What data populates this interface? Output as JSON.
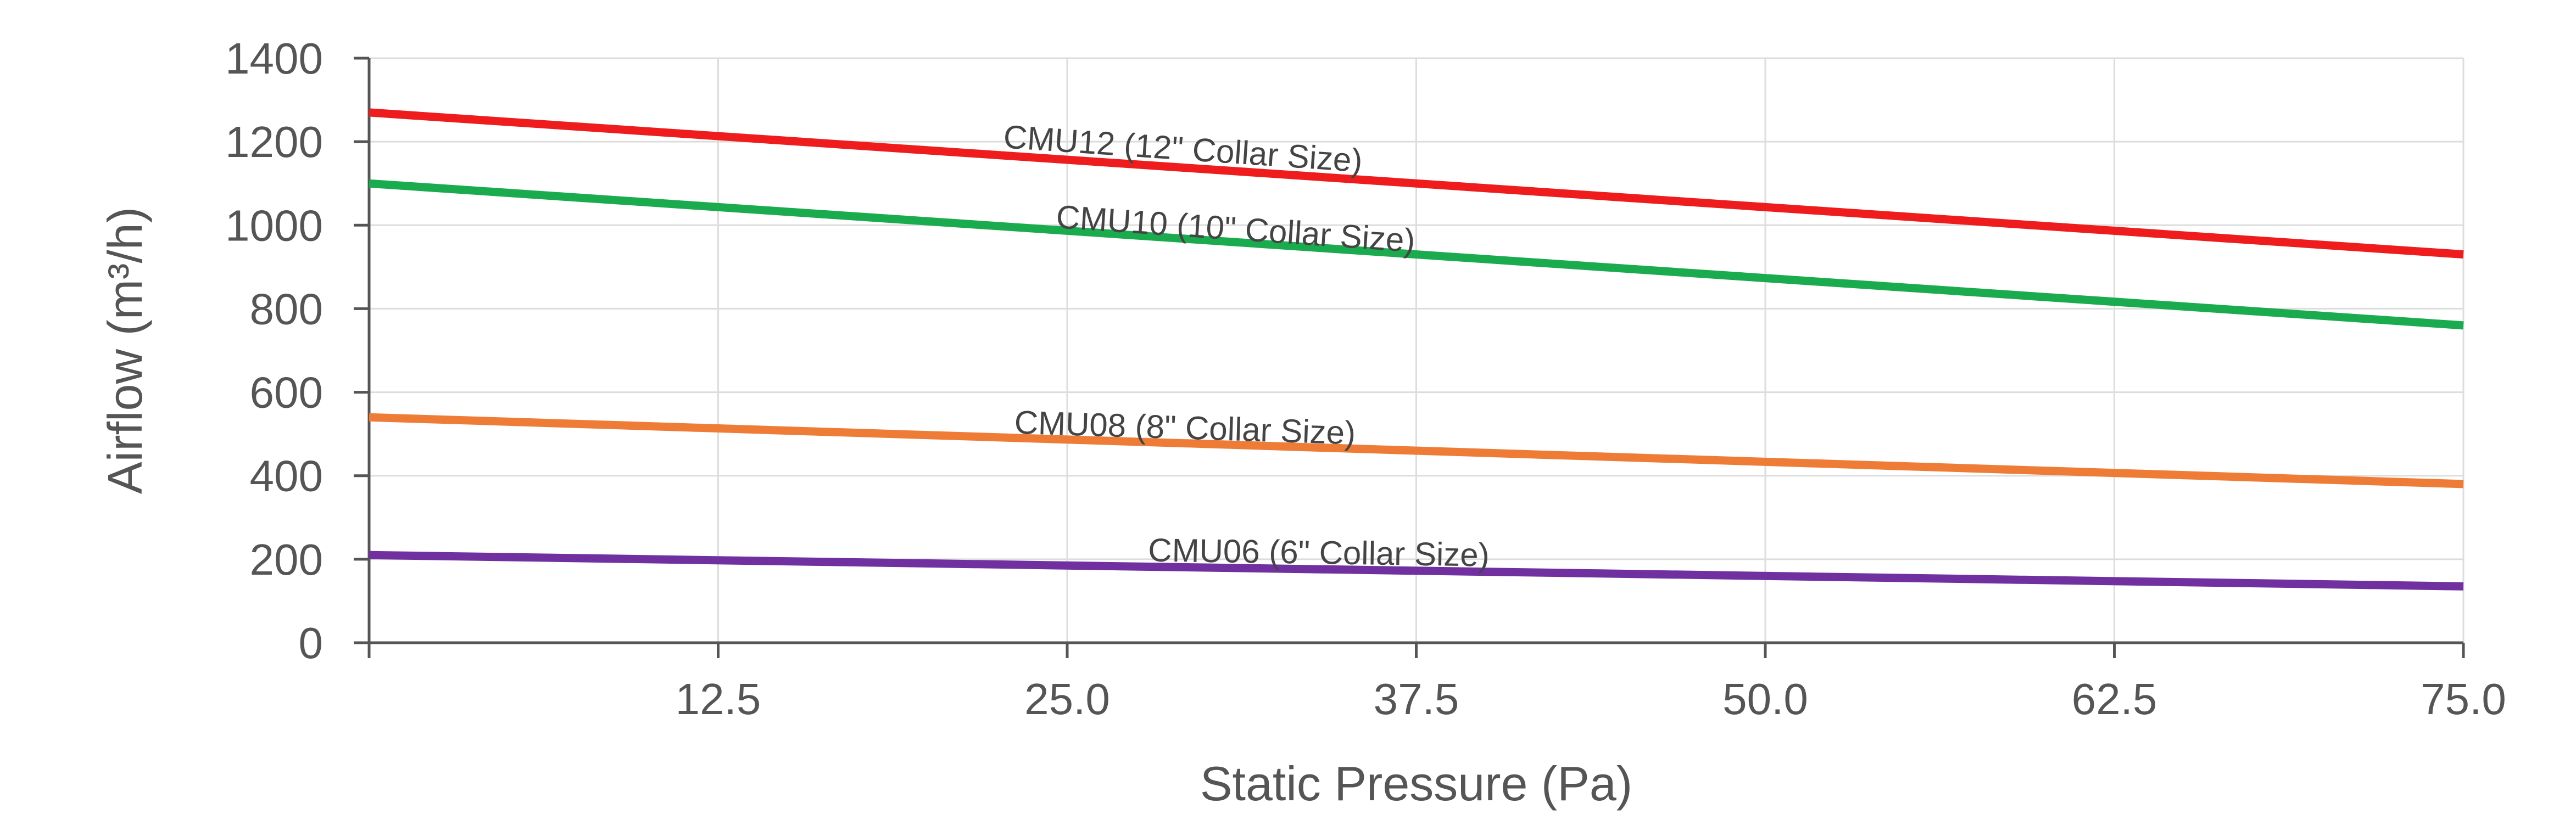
{
  "chart_data": {
    "type": "line",
    "title": "",
    "xlabel": "Static Pressure (Pa)",
    "ylabel": "Airflow (m³/h)",
    "xlim": [
      0,
      75
    ],
    "ylim": [
      0,
      1400
    ],
    "x_ticks": [
      12.5,
      25.0,
      37.5,
      50.0,
      62.5,
      75.0
    ],
    "x_tick_labels": [
      "12.5",
      "25.0",
      "37.5",
      "50.0",
      "62.5",
      "75.0"
    ],
    "y_ticks": [
      0,
      200,
      400,
      600,
      800,
      1000,
      1200,
      1400
    ],
    "y_tick_labels": [
      "0",
      "200",
      "400",
      "600",
      "800",
      "1000",
      "1200",
      "1400"
    ],
    "grid": true,
    "legend": "none",
    "series": [
      {
        "name": "CMU12 (12\" Collar Size)",
        "color": "#ee1c1c",
        "x": [
          0,
          75
        ],
        "y": [
          1270,
          930
        ]
      },
      {
        "name": "CMU10 (10\" Collar Size)",
        "color": "#1aab4f",
        "x": [
          0,
          75
        ],
        "y": [
          1100,
          760
        ]
      },
      {
        "name": "CMU08 (8\" Collar Size)",
        "color": "#ee7c36",
        "x": [
          0,
          75
        ],
        "y": [
          540,
          380
        ]
      },
      {
        "name": "CMU06 (6\" Collar Size)",
        "color": "#7030a0",
        "x": [
          0,
          75
        ],
        "y": [
          210,
          135
        ]
      }
    ]
  }
}
